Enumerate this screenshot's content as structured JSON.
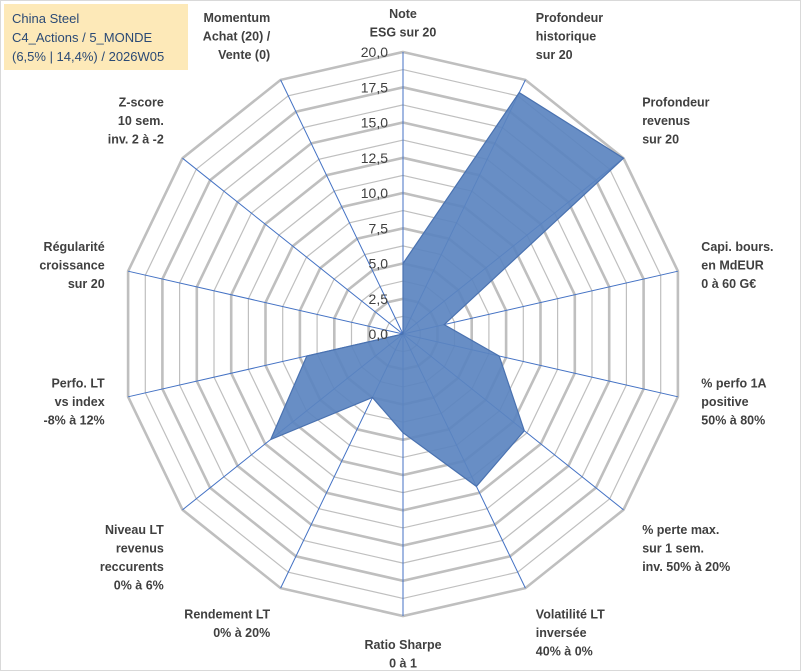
{
  "title_box": {
    "line1": "China Steel",
    "line2": "C4_Actions / 5_MONDE",
    "line3": "(6,5% | 14,4%) / 2026W05"
  },
  "colors": {
    "grid": "#bfbfbf",
    "spokes": "#4472c4",
    "area_fill": "#5b84c0",
    "area_stroke": "#4a72b0",
    "title_bg": "#fde9b8",
    "title_text": "#2b4a75"
  },
  "chart_data": {
    "type": "radar",
    "rmin": 0,
    "rmax": 20,
    "ticks": [
      "0,0",
      "2,5",
      "5,0",
      "7,5",
      "10,0",
      "12,5",
      "15,0",
      "17,5",
      "20,0"
    ],
    "tick_values": [
      0,
      2.5,
      5,
      7.5,
      10,
      12.5,
      15,
      17.5,
      20
    ],
    "grid": true,
    "categories": [
      [
        "Note",
        "ESG sur 20"
      ],
      [
        "Profondeur",
        "historique",
        "sur 20"
      ],
      [
        "Profondeur",
        "revenus",
        "sur 20"
      ],
      [
        "Capi. bours.",
        "en MdEUR",
        "0 à 60 G€"
      ],
      [
        "% perfo 1A",
        "positive",
        "50% à 80%"
      ],
      [
        "% perte max.",
        "sur 1 sem.",
        "inv. 50% à 20%"
      ],
      [
        "Volatilité LT",
        "inversée",
        "40% à 0%"
      ],
      [
        "Ratio Sharpe",
        "0 à 1"
      ],
      [
        "Rendement LT",
        "0% à 20%"
      ],
      [
        "Niveau LT",
        "revenus",
        "reccurents",
        "0% à 6%"
      ],
      [
        "Perfo. LT",
        "vs index",
        "-8% à 12%"
      ],
      [
        "Régularité",
        "croissance",
        "sur 20"
      ],
      [
        "Z-score",
        "10 sem.",
        "inv. 2 à -2"
      ],
      [
        "Momentum",
        "Achat (20) /",
        "Vente (0)"
      ]
    ],
    "series": [
      {
        "values": [
          5,
          19,
          20,
          3,
          7,
          11,
          12,
          7,
          5,
          12,
          7,
          0,
          0,
          0
        ]
      }
    ]
  }
}
